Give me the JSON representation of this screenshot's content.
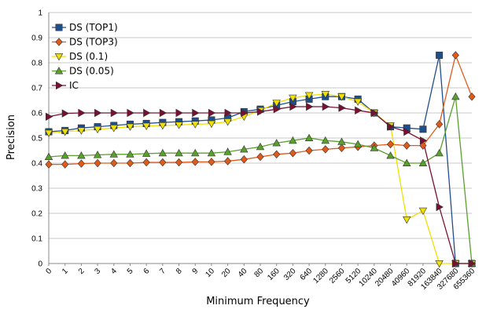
{
  "chart_data": {
    "type": "line",
    "xlabel": "Minimum Frequency",
    "ylabel": "Precision",
    "ylim": [
      0,
      1
    ],
    "yticks": [
      "0",
      "0.1",
      "0.2",
      "0.3",
      "0.4",
      "0.5",
      "0.6",
      "0.7",
      "0.8",
      "0.9",
      "1"
    ],
    "categories": [
      "0",
      "1",
      "2",
      "3",
      "4",
      "5",
      "6",
      "7",
      "8",
      "9",
      "10",
      "20",
      "40",
      "80",
      "160",
      "320",
      "640",
      "1280",
      "2560",
      "5120",
      "10240",
      "20480",
      "40960",
      "81920",
      "163840",
      "327680",
      "655360"
    ],
    "grid": true,
    "legend_position": "top-left",
    "series": [
      {
        "name": "DS (TOP1)",
        "color": "#1f4e8c",
        "marker": "square",
        "values": [
          0.525,
          0.53,
          0.54,
          0.545,
          0.55,
          0.555,
          0.558,
          0.562,
          0.565,
          0.568,
          0.572,
          0.58,
          0.605,
          0.615,
          0.63,
          0.645,
          0.655,
          0.665,
          0.665,
          0.655,
          0.6,
          0.545,
          0.54,
          0.535,
          0.83,
          0.0,
          0.0
        ]
      },
      {
        "name": "DS (TOP3)",
        "color": "#e05a1a",
        "marker": "diamond",
        "values": [
          0.395,
          0.395,
          0.398,
          0.4,
          0.4,
          0.4,
          0.403,
          0.403,
          0.403,
          0.405,
          0.405,
          0.408,
          0.415,
          0.425,
          0.435,
          0.44,
          0.45,
          0.455,
          0.46,
          0.465,
          0.47,
          0.475,
          0.47,
          0.47,
          0.555,
          0.83,
          0.665
        ]
      },
      {
        "name": "DS (0.1)",
        "color": "#f0e000",
        "marker": "triangle-down",
        "values": [
          0.52,
          0.525,
          0.53,
          0.535,
          0.54,
          0.545,
          0.548,
          0.55,
          0.552,
          0.555,
          0.557,
          0.565,
          0.585,
          0.61,
          0.64,
          0.66,
          0.67,
          0.675,
          0.665,
          0.645,
          0.6,
          0.55,
          0.175,
          0.21,
          0.0,
          0.0,
          0.0
        ]
      },
      {
        "name": "DS (0.05)",
        "color": "#5aa02c",
        "marker": "triangle-up",
        "values": [
          0.425,
          0.43,
          0.43,
          0.433,
          0.435,
          0.435,
          0.438,
          0.44,
          0.44,
          0.44,
          0.44,
          0.445,
          0.455,
          0.465,
          0.48,
          0.49,
          0.5,
          0.49,
          0.485,
          0.475,
          0.46,
          0.43,
          0.4,
          0.4,
          0.44,
          0.665,
          0.0
        ]
      },
      {
        "name": "IC",
        "color": "#7a1030",
        "marker": "triangle-right",
        "values": [
          0.585,
          0.598,
          0.6,
          0.6,
          0.6,
          0.6,
          0.6,
          0.6,
          0.6,
          0.6,
          0.6,
          0.6,
          0.6,
          0.605,
          0.615,
          0.625,
          0.625,
          0.625,
          0.62,
          0.61,
          0.6,
          0.545,
          0.525,
          0.49,
          0.225,
          0.0,
          0.0
        ]
      }
    ]
  }
}
